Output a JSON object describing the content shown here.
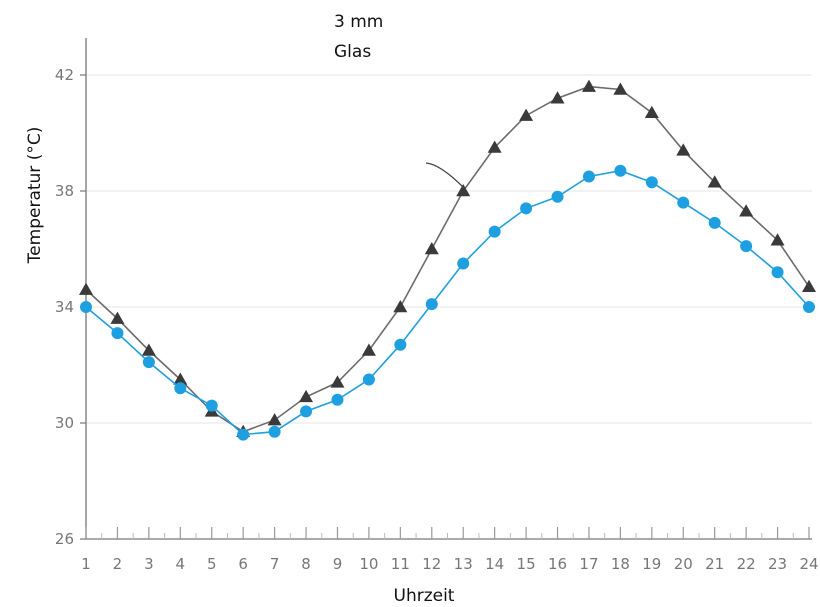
{
  "chart_data": {
    "type": "line",
    "annotation": [
      "3 mm",
      "Glas"
    ],
    "xlabel": "Uhrzeit",
    "ylabel": "Temperatur (°C)",
    "x": [
      1,
      2,
      3,
      4,
      5,
      6,
      7,
      8,
      9,
      10,
      11,
      12,
      13,
      14,
      15,
      16,
      17,
      18,
      19,
      20,
      21,
      22,
      23,
      24
    ],
    "xlim": [
      1,
      24
    ],
    "ylim": [
      26,
      43.5
    ],
    "yticks": [
      26,
      30,
      34,
      38,
      42
    ],
    "grid": "horizontal",
    "series": [
      {
        "marker": "triangle",
        "color": "#3a3a3a",
        "line_color": "#6b6b6b",
        "values": [
          34.6,
          33.6,
          32.5,
          31.5,
          30.4,
          29.7,
          30.1,
          30.9,
          31.4,
          32.5,
          34.0,
          36.0,
          38.0,
          39.5,
          40.6,
          41.2,
          41.6,
          41.5,
          40.7,
          39.4,
          38.3,
          37.3,
          36.3,
          34.7
        ]
      },
      {
        "marker": "circle",
        "color": "#1ea0e0",
        "line_color": "#1ea0e0",
        "values": [
          34.0,
          33.1,
          32.1,
          31.2,
          30.6,
          29.6,
          29.7,
          30.4,
          30.8,
          31.5,
          32.7,
          34.1,
          35.5,
          36.6,
          37.4,
          37.8,
          38.5,
          38.7,
          38.3,
          37.6,
          36.9,
          36.1,
          35.2,
          34.0
        ]
      }
    ]
  }
}
